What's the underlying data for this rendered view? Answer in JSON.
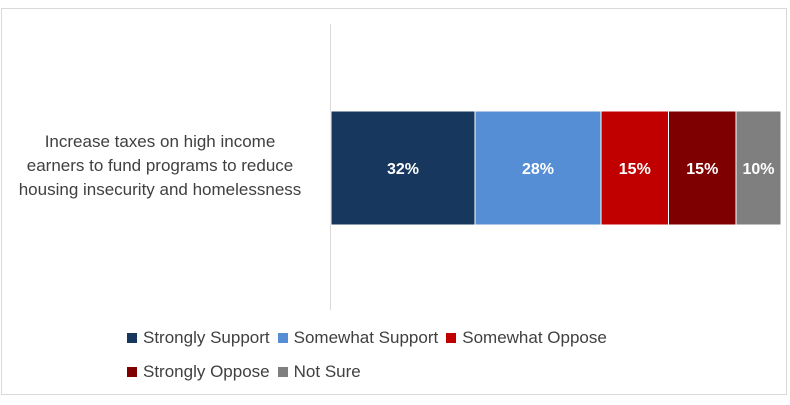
{
  "chart_data": {
    "type": "bar",
    "orientation": "horizontal",
    "stacked": true,
    "categories": [
      "Increase taxes on high income earners to fund programs to reduce housing insecurity and homelessness"
    ],
    "category_label_lines": [
      "Increase taxes on high income",
      "earners to fund programs to reduce",
      "housing insecurity and homelessness"
    ],
    "series": [
      {
        "name": "Strongly Support",
        "values": [
          32
        ],
        "label": "32%",
        "color": "#17375e",
        "label_color": "#ffffff"
      },
      {
        "name": "Somewhat Support",
        "values": [
          28
        ],
        "label": "28%",
        "color": "#558ed5",
        "label_color": "#ffffff"
      },
      {
        "name": "Somewhat Oppose",
        "values": [
          15
        ],
        "label": "15%",
        "color": "#c00000",
        "label_color": "#ffffff"
      },
      {
        "name": "Strongly Oppose",
        "values": [
          15
        ],
        "label": "15%",
        "color": "#7f0000",
        "label_color": "#ffffff"
      },
      {
        "name": "Not Sure",
        "values": [
          10
        ],
        "label": "10%",
        "color": "#7f7f7f",
        "label_color": "#ffffff"
      }
    ],
    "xlim": [
      0,
      100
    ],
    "grid": false,
    "legend_position": "bottom"
  }
}
